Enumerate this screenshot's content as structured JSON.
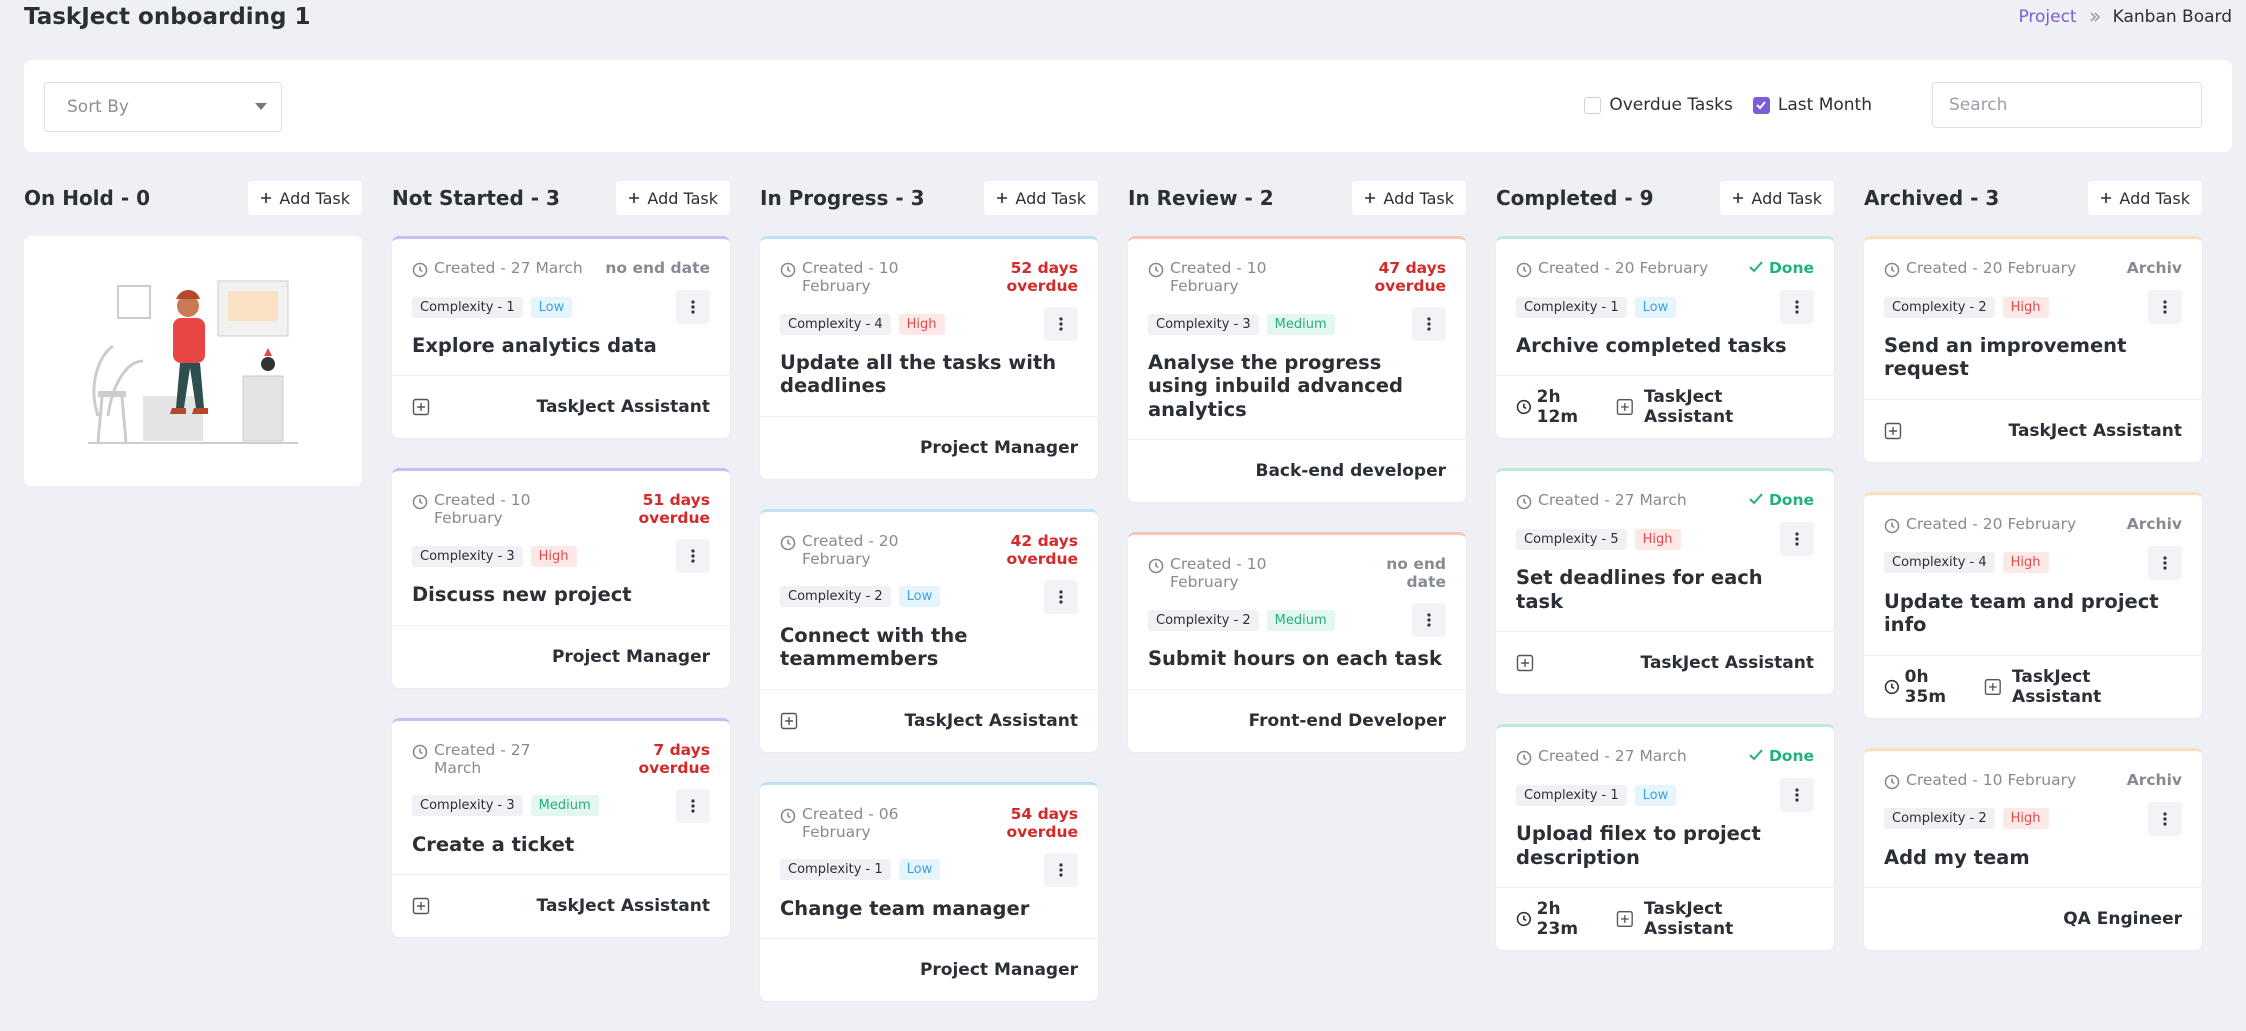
{
  "header": {
    "title": "TaskJect onboarding 1",
    "breadcrumb": [
      "Project",
      "Kanban Board"
    ]
  },
  "toolbar": {
    "sort_placeholder": "Sort By",
    "filters": [
      {
        "label": "Overdue Tasks",
        "checked": false
      },
      {
        "label": "Last Month",
        "checked": true
      }
    ],
    "search_placeholder": "Search"
  },
  "columns": [
    {
      "title": "On Hold - 0",
      "add_label": "Add Task",
      "color": "#cccccc",
      "cards": []
    },
    {
      "title": "Not Started - 3",
      "add_label": "Add Task",
      "color": "#cbbcf2",
      "cards": [
        {
          "created": "Created - 27 March",
          "status": {
            "text": "no end date",
            "color": "#868b93"
          },
          "complexity": "Complexity - 1",
          "level": {
            "text": "Low",
            "color": "#3aa0e0",
            "bg": "#e6f4fd"
          },
          "title": "Explore analytics data",
          "add_icon": true,
          "assignee": "TaskJect Assistant"
        },
        {
          "created": "Created - 10 February",
          "status": {
            "text": "51 days overdue",
            "color": "#d42a2a"
          },
          "complexity": "Complexity - 3",
          "level": {
            "text": "High",
            "color": "#e04b4b",
            "bg": "#fde8e8"
          },
          "title": "Discuss new project",
          "add_icon": false,
          "assignee": "Project Manager"
        },
        {
          "created": "Created - 27 March",
          "status": {
            "text": "7 days overdue",
            "color": "#d42a2a"
          },
          "complexity": "Complexity - 3",
          "level": {
            "text": "Medium",
            "color": "#22b07d",
            "bg": "#e3f7ee"
          },
          "title": "Create a ticket",
          "add_icon": true,
          "assignee": "TaskJect Assistant"
        }
      ]
    },
    {
      "title": "In Progress - 3",
      "add_label": "Add Task",
      "color": "#bfe1f6",
      "cards": [
        {
          "created": "Created - 10 February",
          "status": {
            "text": "52 days overdue",
            "color": "#d42a2a"
          },
          "complexity": "Complexity - 4",
          "level": {
            "text": "High",
            "color": "#e04b4b",
            "bg": "#fde8e8"
          },
          "title": "Update all the tasks with deadlines",
          "add_icon": false,
          "assignee": "Project Manager"
        },
        {
          "created": "Created - 20 February",
          "status": {
            "text": "42 days overdue",
            "color": "#d42a2a"
          },
          "complexity": "Complexity - 2",
          "level": {
            "text": "Low",
            "color": "#3aa0e0",
            "bg": "#e6f4fd"
          },
          "title": "Connect with the teammembers",
          "add_icon": true,
          "assignee": "TaskJect Assistant"
        },
        {
          "created": "Created - 06 February",
          "status": {
            "text": "54 days overdue",
            "color": "#d42a2a"
          },
          "complexity": "Complexity - 1",
          "level": {
            "text": "Low",
            "color": "#3aa0e0",
            "bg": "#e6f4fd"
          },
          "title": "Change team manager",
          "add_icon": false,
          "assignee": "Project Manager"
        }
      ]
    },
    {
      "title": "In Review - 2",
      "add_label": "Add Task",
      "color": "#f6c6b9",
      "cards": [
        {
          "created": "Created - 10 February",
          "status": {
            "text": "47 days overdue",
            "color": "#d42a2a"
          },
          "complexity": "Complexity - 3",
          "level": {
            "text": "Medium",
            "color": "#22b07d",
            "bg": "#e3f7ee"
          },
          "title": "Analyse the progress using inbuild advanced analytics",
          "add_icon": false,
          "assignee": "Back-end developer"
        },
        {
          "created": "Created - 10 February",
          "status": {
            "text": "no end date",
            "color": "#868b93"
          },
          "complexity": "Complexity - 2",
          "level": {
            "text": "Medium",
            "color": "#22b07d",
            "bg": "#e3f7ee"
          },
          "title": "Submit hours on each task",
          "add_icon": false,
          "assignee": "Front-end Developer"
        }
      ]
    },
    {
      "title": "Completed - 9",
      "add_label": "Add Task",
      "color": "#b9ebda",
      "cards": [
        {
          "created": "Created - 20 February",
          "status": {
            "text": "Done",
            "color": "#22b07d",
            "icon": "check"
          },
          "complexity": "Complexity - 1",
          "level": {
            "text": "Low",
            "color": "#3aa0e0",
            "bg": "#e6f4fd"
          },
          "title": "Archive completed tasks",
          "time": "2h 12m",
          "add_icon": true,
          "assignee": "TaskJect Assistant"
        },
        {
          "created": "Created - 27 March",
          "status": {
            "text": "Done",
            "color": "#22b07d",
            "icon": "check"
          },
          "complexity": "Complexity - 5",
          "level": {
            "text": "High",
            "color": "#e04b4b",
            "bg": "#fde8e8"
          },
          "title": "Set deadlines for each task",
          "add_icon": true,
          "assignee": "TaskJect Assistant"
        },
        {
          "created": "Created - 27 March",
          "status": {
            "text": "Done",
            "color": "#22b07d",
            "icon": "check"
          },
          "complexity": "Complexity - 1",
          "level": {
            "text": "Low",
            "color": "#3aa0e0",
            "bg": "#e6f4fd"
          },
          "title": "Upload filex to project description",
          "time": "2h 23m",
          "add_icon": true,
          "assignee": "TaskJect Assistant"
        }
      ]
    },
    {
      "title": "Archived - 3",
      "add_label": "Add Task",
      "color": "#f9e0bb",
      "cards": [
        {
          "created": "Created - 20 February",
          "status": {
            "text": "Archiv",
            "color": "#868b93"
          },
          "complexity": "Complexity - 2",
          "level": {
            "text": "High",
            "color": "#e04b4b",
            "bg": "#fde8e8"
          },
          "title": "Send an improvement request",
          "add_icon": true,
          "assignee": "TaskJect Assistant"
        },
        {
          "created": "Created - 20 February",
          "status": {
            "text": "Archiv",
            "color": "#868b93"
          },
          "complexity": "Complexity - 4",
          "level": {
            "text": "High",
            "color": "#e04b4b",
            "bg": "#fde8e8"
          },
          "title": "Update team and project info",
          "time": "0h 35m",
          "add_icon": true,
          "assignee": "TaskJect Assistant"
        },
        {
          "created": "Created - 10 February",
          "status": {
            "text": "Archiv",
            "color": "#868b93"
          },
          "complexity": "Complexity - 2",
          "level": {
            "text": "High",
            "color": "#e04b4b",
            "bg": "#fde8e8"
          },
          "title": "Add my team",
          "add_icon": false,
          "assignee": "QA Engineer"
        }
      ]
    }
  ]
}
